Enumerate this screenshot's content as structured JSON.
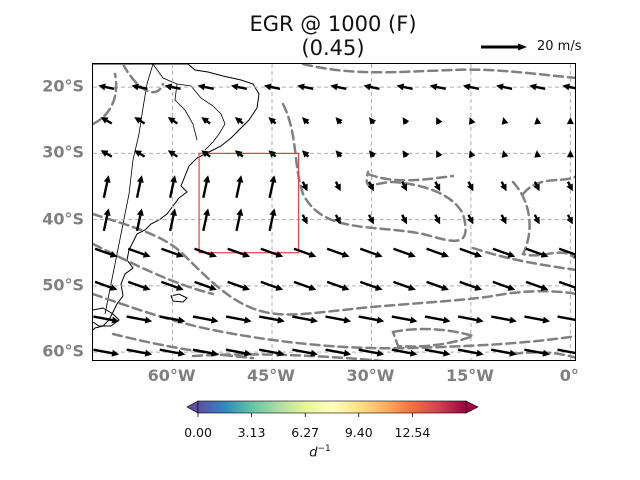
{
  "title": {
    "line1": "EGR @ 1000 (F)",
    "line2": "(0.45)"
  },
  "reference_arrow": {
    "label": "20 m/s",
    "value_ms": 20
  },
  "map": {
    "projection": "PlateCarree",
    "lon_range": [
      -72,
      1
    ],
    "lat_range": [
      -61.5,
      -16.5
    ],
    "lat_ticks": [
      {
        "value": -20,
        "label": "20°S"
      },
      {
        "value": -30,
        "label": "30°S"
      },
      {
        "value": -40,
        "label": "40°S"
      },
      {
        "value": -50,
        "label": "50°S"
      },
      {
        "value": -60,
        "label": "60°S"
      }
    ],
    "lon_ticks": [
      {
        "value": -60,
        "label": "60°W"
      },
      {
        "value": -45,
        "label": "45°W"
      },
      {
        "value": -30,
        "label": "30°W"
      },
      {
        "value": -15,
        "label": "15°W"
      },
      {
        "value": 0,
        "label": "0°"
      }
    ],
    "gridlines": true,
    "region_box": {
      "lon": [
        -56,
        -41
      ],
      "lat": [
        -45,
        -30
      ],
      "color": "#e8404a"
    }
  },
  "colorbar": {
    "colormap": "Spectral_r",
    "ticks": [
      "0.00",
      "3.13",
      "6.27",
      "9.40",
      "12.54"
    ],
    "range": [
      0,
      15.67
    ],
    "extend": "both",
    "unit_base": "d",
    "unit_exp": "−1",
    "colors": [
      "#5e4fa2",
      "#3288bd",
      "#66c2a5",
      "#abdda4",
      "#e6f598",
      "#ffffbf",
      "#fee08b",
      "#fdae61",
      "#f46d43",
      "#d53e4f",
      "#9e0142"
    ]
  },
  "contour_style": {
    "color": "#808080",
    "dash": "dashed"
  }
}
